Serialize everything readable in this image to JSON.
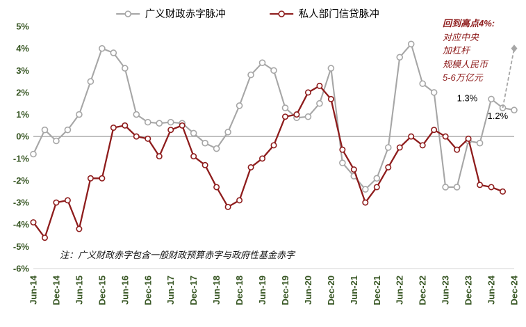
{
  "chart_data": {
    "type": "line",
    "title": "",
    "legend_position": "top",
    "x_unit": "months since Jun-2014 (quarterly data points)",
    "xlim": [
      0,
      126
    ],
    "ylim": [
      -6,
      5
    ],
    "grid": "zero-line only",
    "axis_label_color": "#375623",
    "x_ticks": [
      {
        "pos": 0,
        "label": "Jun-14"
      },
      {
        "pos": 6,
        "label": "Dec-14"
      },
      {
        "pos": 12,
        "label": "Jun-15"
      },
      {
        "pos": 18,
        "label": "Dec-15"
      },
      {
        "pos": 24,
        "label": "Jun-16"
      },
      {
        "pos": 30,
        "label": "Dec-16"
      },
      {
        "pos": 36,
        "label": "Jun-17"
      },
      {
        "pos": 42,
        "label": "Dec-17"
      },
      {
        "pos": 48,
        "label": "Jun-18"
      },
      {
        "pos": 54,
        "label": "Dec-18"
      },
      {
        "pos": 60,
        "label": "Jun-19"
      },
      {
        "pos": 66,
        "label": "Dec-19"
      },
      {
        "pos": 72,
        "label": "Jun-20"
      },
      {
        "pos": 78,
        "label": "Dec-20"
      },
      {
        "pos": 84,
        "label": "Jun-21"
      },
      {
        "pos": 90,
        "label": "Dec-21"
      },
      {
        "pos": 96,
        "label": "Jun-22"
      },
      {
        "pos": 102,
        "label": "Dec-22"
      },
      {
        "pos": 108,
        "label": "Jun-23"
      },
      {
        "pos": 114,
        "label": "Dec-23"
      },
      {
        "pos": 120,
        "label": "Jun-24"
      },
      {
        "pos": 126,
        "label": "Dec-24"
      }
    ],
    "y_ticks": [
      {
        "value": 5,
        "label": "5%"
      },
      {
        "value": 4,
        "label": "4%"
      },
      {
        "value": 3,
        "label": "3%"
      },
      {
        "value": 2,
        "label": "2%"
      },
      {
        "value": 1,
        "label": "1%"
      },
      {
        "value": 0,
        "label": "0%"
      },
      {
        "value": -1,
        "label": "-1%"
      },
      {
        "value": -2,
        "label": "-2%"
      },
      {
        "value": -3,
        "label": "-3%"
      },
      {
        "value": -4,
        "label": "-4%"
      },
      {
        "value": -5,
        "label": "-5%"
      },
      {
        "value": -6,
        "label": "-6%"
      }
    ],
    "series": [
      {
        "name": "广义财政赤字脉冲",
        "color": "#a6a6a6",
        "marker": "open-circle",
        "points": [
          [
            0,
            -0.8
          ],
          [
            3,
            0.3
          ],
          [
            6,
            -0.2
          ],
          [
            9,
            0.3
          ],
          [
            12,
            1.0
          ],
          [
            15,
            2.5
          ],
          [
            18,
            4.0
          ],
          [
            21,
            3.8
          ],
          [
            24,
            3.1
          ],
          [
            27,
            1.0
          ],
          [
            30,
            0.65
          ],
          [
            33,
            0.6
          ],
          [
            36,
            0.65
          ],
          [
            39,
            0.6
          ],
          [
            42,
            0.15
          ],
          [
            45,
            -0.3
          ],
          [
            48,
            -0.55
          ],
          [
            51,
            0.2
          ],
          [
            54,
            1.4
          ],
          [
            57,
            2.8
          ],
          [
            60,
            3.35
          ],
          [
            63,
            3.0
          ],
          [
            66,
            1.3
          ],
          [
            69,
            0.85
          ],
          [
            72,
            0.9
          ],
          [
            75,
            1.5
          ],
          [
            78,
            3.1
          ],
          [
            81,
            -1.2
          ],
          [
            84,
            -1.8
          ],
          [
            87,
            -2.4
          ],
          [
            90,
            -1.9
          ],
          [
            93,
            -0.5
          ],
          [
            96,
            3.6
          ],
          [
            99,
            4.2
          ],
          [
            102,
            2.4
          ],
          [
            105,
            2.0
          ],
          [
            108,
            -2.3
          ],
          [
            111,
            -2.3
          ],
          [
            114,
            -0.2
          ],
          [
            117,
            -0.3
          ],
          [
            120,
            1.7
          ],
          [
            123,
            1.3
          ],
          [
            126,
            1.2
          ]
        ]
      },
      {
        "name": "私人部门信贷脉冲",
        "color": "#8e1c1c",
        "marker": "open-circle",
        "points": [
          [
            0,
            -3.9
          ],
          [
            3,
            -4.6
          ],
          [
            6,
            -3.0
          ],
          [
            9,
            -2.9
          ],
          [
            12,
            -4.2
          ],
          [
            15,
            -1.9
          ],
          [
            18,
            -1.9
          ],
          [
            21,
            0.4
          ],
          [
            24,
            0.5
          ],
          [
            27,
            0.0
          ],
          [
            30,
            -0.1
          ],
          [
            33,
            -0.9
          ],
          [
            36,
            0.3
          ],
          [
            39,
            0.5
          ],
          [
            42,
            -0.9
          ],
          [
            45,
            -1.3
          ],
          [
            48,
            -2.3
          ],
          [
            51,
            -3.2
          ],
          [
            54,
            -2.9
          ],
          [
            57,
            -1.4
          ],
          [
            60,
            -1.0
          ],
          [
            63,
            -0.4
          ],
          [
            66,
            0.9
          ],
          [
            69,
            1.0
          ],
          [
            72,
            2.0
          ],
          [
            75,
            2.3
          ],
          [
            78,
            1.7
          ],
          [
            81,
            -0.6
          ],
          [
            84,
            -1.5
          ],
          [
            87,
            -3.0
          ],
          [
            90,
            -2.3
          ],
          [
            93,
            -1.4
          ],
          [
            96,
            -0.5
          ],
          [
            99,
            0.0
          ],
          [
            102,
            -0.4
          ],
          [
            105,
            0.3
          ],
          [
            108,
            0.0
          ],
          [
            111,
            -0.6
          ],
          [
            114,
            -0.1
          ],
          [
            117,
            -2.2
          ],
          [
            120,
            -2.3
          ],
          [
            123,
            -2.5
          ]
        ]
      }
    ],
    "projection": {
      "from": [
        123,
        1.3
      ],
      "to": [
        126,
        4.0
      ],
      "color": "#a6a6a6",
      "style": "dashed",
      "end_marker": "diamond"
    },
    "annotations": [
      {
        "text": "1.3%",
        "x": 111,
        "y": 1.6
      },
      {
        "text": "1.2%",
        "x": 119,
        "y": 0.8
      }
    ],
    "callout": {
      "color": "#8e1c1c",
      "lines": [
        "回到高点4%:",
        "对应中央",
        "加杠杆",
        "规模人民币",
        "5-6万亿元"
      ]
    },
    "note": "注：广义财政赤字包含一般财政预算赤字与政府性基金赤字"
  }
}
